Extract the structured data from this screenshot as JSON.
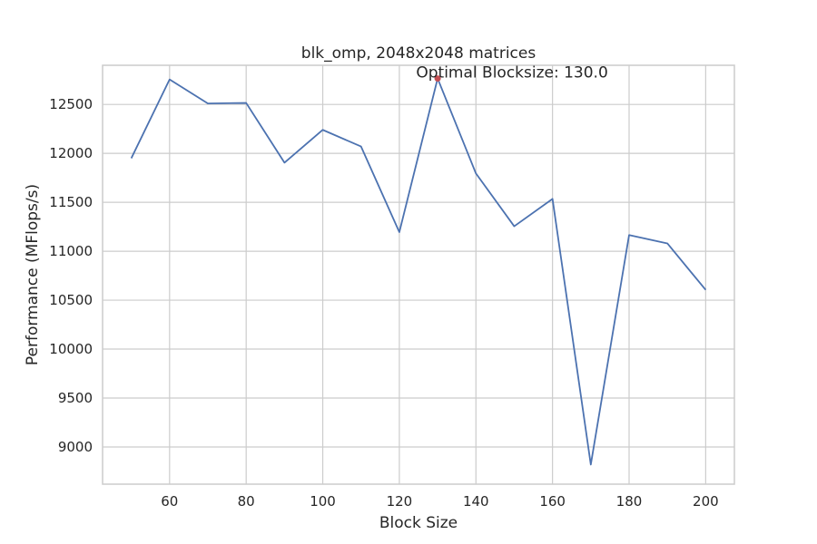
{
  "chart_data": {
    "type": "line",
    "title": "blk_omp, 2048x2048 matrices",
    "xlabel": "Block Size",
    "ylabel": "Performance (MFlops/s)",
    "xlim": [
      42.5,
      207.5
    ],
    "ylim": [
      8620,
      12900
    ],
    "xticks": [
      60,
      80,
      100,
      120,
      140,
      160,
      180,
      200
    ],
    "yticks": [
      9000,
      9500,
      10000,
      10500,
      11000,
      11500,
      12000,
      12500
    ],
    "grid": true,
    "series": [
      {
        "x": [
          50,
          60,
          70,
          80,
          90,
          100,
          110,
          120,
          130,
          140,
          150,
          160,
          170,
          180,
          190,
          200
        ],
        "y": [
          11950,
          12755,
          12510,
          12515,
          11905,
          12240,
          12070,
          11195,
          12765,
          11795,
          11255,
          11535,
          8820,
          11165,
          11080,
          10605
        ],
        "color": "#4c72b0"
      }
    ],
    "highlight": {
      "x": 130,
      "y": 12765,
      "color": "#c44e52"
    },
    "annotation": {
      "text": "Optimal Blocksize: 130.0",
      "x": 130,
      "y": 12765
    }
  }
}
